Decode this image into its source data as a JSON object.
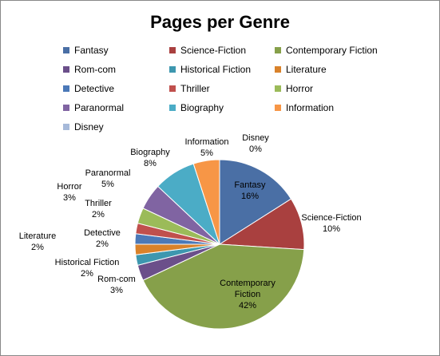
{
  "chart_data": {
    "type": "pie",
    "title": "Pages per Genre",
    "legend_position": "top",
    "series": [
      {
        "name": "Fantasy",
        "percent": 16,
        "label": "16%",
        "color": "#4A6FA5"
      },
      {
        "name": "Science-Fiction",
        "percent": 10,
        "label": "10%",
        "color": "#A9403F"
      },
      {
        "name": "Contemporary Fiction",
        "percent": 42,
        "label": "42%",
        "color": "#86A04A"
      },
      {
        "name": "Rom-com",
        "percent": 3,
        "label": "3%",
        "color": "#6B4F8A"
      },
      {
        "name": "Historical Fiction",
        "percent": 2,
        "label": "2%",
        "color": "#3D97AF"
      },
      {
        "name": "Literature",
        "percent": 2,
        "label": "2%",
        "color": "#D9822B"
      },
      {
        "name": "Detective",
        "percent": 2,
        "label": "2%",
        "color": "#4B79B8"
      },
      {
        "name": "Thriller",
        "percent": 2,
        "label": "2%",
        "color": "#C0504D"
      },
      {
        "name": "Horror",
        "percent": 3,
        "label": "3%",
        "color": "#9BBB59"
      },
      {
        "name": "Paranormal",
        "percent": 5,
        "label": "5%",
        "color": "#8064A2"
      },
      {
        "name": "Biography",
        "percent": 8,
        "label": "8%",
        "color": "#4BACC6"
      },
      {
        "name": "Information",
        "percent": 5,
        "label": "5%",
        "color": "#F79646"
      },
      {
        "name": "Disney",
        "percent": 0,
        "label": "0%",
        "color": "#A6B9D9"
      }
    ]
  }
}
